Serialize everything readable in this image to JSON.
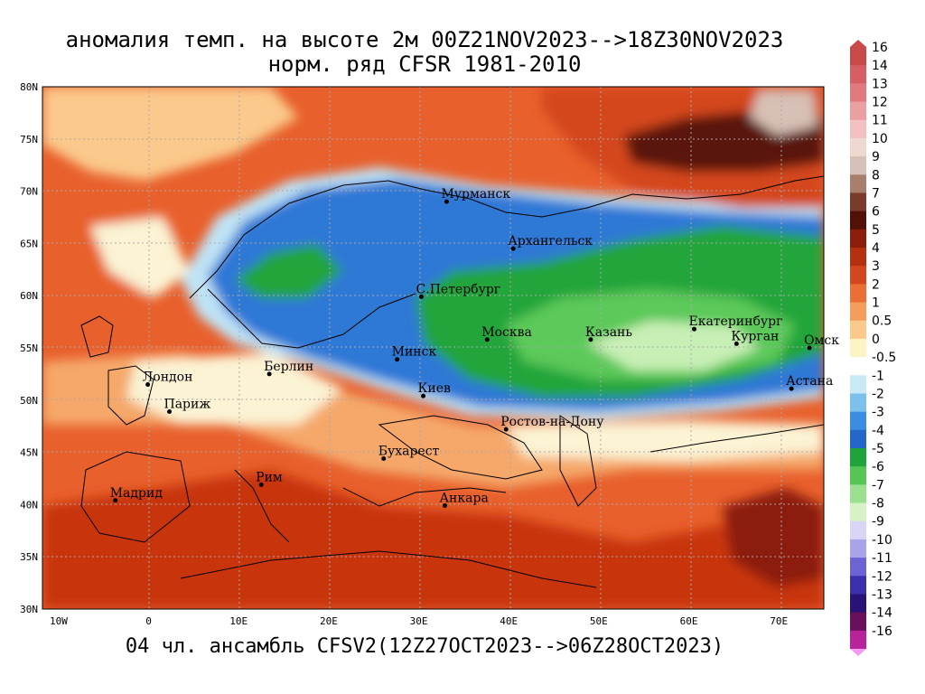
{
  "title": {
    "line1": "аномалия темп. на высоте 2м 00Z21NOV2023-->18Z30NOV2023",
    "line2": "норм. ряд CFSR 1981-2010"
  },
  "footer": "04 чл. ансамбль CFSV2(12Z27OCT2023-->06Z28OCT2023)",
  "axes": {
    "lat_labels": [
      "80N",
      "75N",
      "70N",
      "65N",
      "60N",
      "55N",
      "50N",
      "45N",
      "40N",
      "35N",
      "30N"
    ],
    "lon_labels": [
      "10W",
      "0",
      "10E",
      "20E",
      "30E",
      "40E",
      "50E",
      "60E",
      "70E"
    ]
  },
  "cities": [
    {
      "name": "Мурманск",
      "lon": 33.1,
      "lat": 69.0
    },
    {
      "name": "Архангельск",
      "lon": 40.5,
      "lat": 64.5
    },
    {
      "name": "С.Петербург",
      "lon": 30.3,
      "lat": 59.9
    },
    {
      "name": "Москва",
      "lon": 37.6,
      "lat": 55.8
    },
    {
      "name": "Казань",
      "lon": 49.1,
      "lat": 55.8
    },
    {
      "name": "Екатеринбург",
      "lon": 60.6,
      "lat": 56.8
    },
    {
      "name": "Курган",
      "lon": 65.3,
      "lat": 55.4
    },
    {
      "name": "Омск",
      "lon": 73.4,
      "lat": 55.0
    },
    {
      "name": "Астана",
      "lon": 71.4,
      "lat": 51.1
    },
    {
      "name": "Минск",
      "lon": 27.6,
      "lat": 53.9
    },
    {
      "name": "Киев",
      "lon": 30.5,
      "lat": 50.4
    },
    {
      "name": "Берлин",
      "lon": 13.4,
      "lat": 52.5
    },
    {
      "name": "Лондон",
      "lon": -0.1,
      "lat": 51.5
    },
    {
      "name": "Париж",
      "lon": 2.3,
      "lat": 48.9
    },
    {
      "name": "Ростов-на-Дону",
      "lon": 39.7,
      "lat": 47.2
    },
    {
      "name": "Бухарест",
      "lon": 26.1,
      "lat": 44.4
    },
    {
      "name": "Рим",
      "lon": 12.5,
      "lat": 41.9
    },
    {
      "name": "Мадрид",
      "lon": -3.7,
      "lat": 40.4
    },
    {
      "name": "Анкара",
      "lon": 32.9,
      "lat": 39.9
    }
  ],
  "legend": {
    "levels": [
      {
        "label": "16",
        "color": "#c94a4a"
      },
      {
        "label": "14",
        "color": "#d75f64"
      },
      {
        "label": "13",
        "color": "#e07a7e"
      },
      {
        "label": "12",
        "color": "#ec9fa0"
      },
      {
        "label": "11",
        "color": "#f3c1bf"
      },
      {
        "label": "10",
        "color": "#efd8cf"
      },
      {
        "label": "9",
        "color": "#d7c0b5"
      },
      {
        "label": "8",
        "color": "#a87f6c"
      },
      {
        "label": "7",
        "color": "#7a3b2a"
      },
      {
        "label": "6",
        "color": "#521006"
      },
      {
        "label": "5",
        "color": "#8c1d0a"
      },
      {
        "label": "4",
        "color": "#b5300e"
      },
      {
        "label": "3",
        "color": "#d4471e"
      },
      {
        "label": "2",
        "color": "#ea6e36"
      },
      {
        "label": "1",
        "color": "#f59d5b"
      },
      {
        "label": "0.5",
        "color": "#fbc98b"
      },
      {
        "label": "0",
        "color": "#fdf4c4"
      },
      {
        "label": "-0.5",
        "color": "#ffffff"
      },
      {
        "label": "-1",
        "color": "#c9e9f7"
      },
      {
        "label": "-2",
        "color": "#7cc1ee"
      },
      {
        "label": "-3",
        "color": "#3a8de0"
      },
      {
        "label": "-4",
        "color": "#2368c8"
      },
      {
        "label": "-5",
        "color": "#1fa33a"
      },
      {
        "label": "-6",
        "color": "#55c556"
      },
      {
        "label": "-7",
        "color": "#9ae08f"
      },
      {
        "label": "-8",
        "color": "#d8f2c8"
      },
      {
        "label": "-9",
        "color": "#d9d6f5"
      },
      {
        "label": "-10",
        "color": "#a9a3ec"
      },
      {
        "label": "-11",
        "color": "#6c63d5"
      },
      {
        "label": "-12",
        "color": "#3c2fae"
      },
      {
        "label": "-13",
        "color": "#2a1378"
      },
      {
        "label": "-14",
        "color": "#6a0f5a"
      },
      {
        "label": "-16",
        "color": "#b8239c"
      }
    ],
    "extra_colors": [
      "#e24fd2",
      "#f59af0"
    ]
  },
  "colors": {
    "warm_deep": "#c8350f",
    "warm_mid": "#e8602c",
    "warm_light": "#f5a86a",
    "neutral": "#fbf3d4",
    "cold_light": "#bfe3f5",
    "cold_mid": "#3d86d8",
    "cold_deep": "#1f5fc0",
    "green_deep": "#23a53a",
    "green_mid": "#5cc95a",
    "green_light": "#c8efb5",
    "arctic_hot": "#5a1508"
  }
}
